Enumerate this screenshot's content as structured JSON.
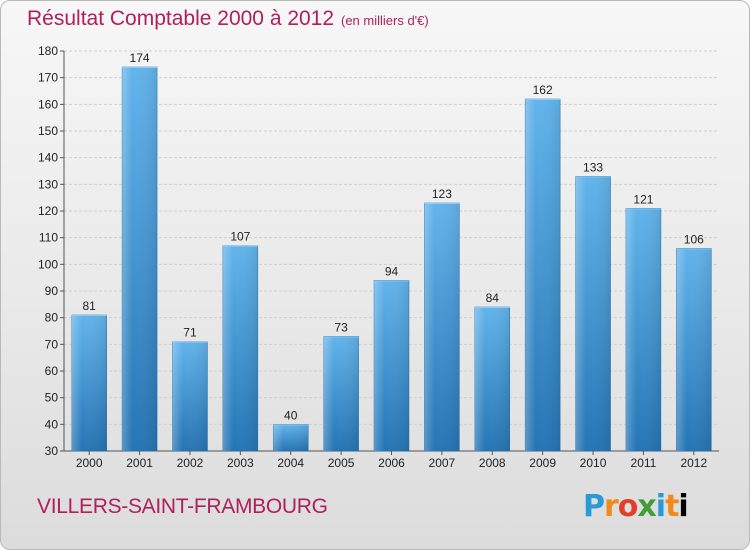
{
  "header": {
    "title": "Résultat Comptable 2000 à 2012",
    "unit_note": "(en milliers d'€)"
  },
  "footer": {
    "commune": "VILLERS-SAINT-FRAMBOURG",
    "logo_text": "Proxiti"
  },
  "colors": {
    "title": "#b0205a",
    "bar_light": "#5aaee8",
    "bar_dark": "#2a78b8"
  },
  "chart_data": {
    "type": "bar",
    "title": "Résultat Comptable 2000 à 2012",
    "subtitle": "(en milliers d'€)",
    "xlabel": "",
    "ylabel": "",
    "categories": [
      "2000",
      "2001",
      "2002",
      "2003",
      "2004",
      "2005",
      "2006",
      "2007",
      "2008",
      "2009",
      "2010",
      "2011",
      "2012"
    ],
    "values": [
      81,
      174,
      71,
      107,
      40,
      73,
      94,
      123,
      84,
      162,
      133,
      121,
      106
    ],
    "ylim": [
      30,
      180
    ],
    "yticks": [
      30,
      40,
      50,
      60,
      70,
      80,
      90,
      100,
      110,
      120,
      130,
      140,
      150,
      160,
      170,
      180
    ],
    "grid": true,
    "legend": "none"
  }
}
